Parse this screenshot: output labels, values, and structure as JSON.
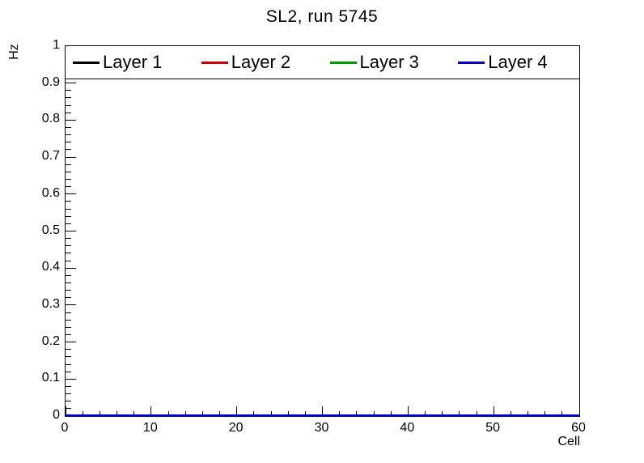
{
  "canvas": {
    "background": "#ffffff",
    "foreground": "#000000"
  },
  "chart_data": {
    "type": "line",
    "title": "SL2, run 5745",
    "xlabel": "Cell",
    "ylabel": "Hz",
    "xlim": [
      0,
      60
    ],
    "ylim": [
      0,
      1
    ],
    "grid": false,
    "x_ticks": {
      "major_values": [
        0,
        10,
        20,
        30,
        40,
        50,
        60
      ],
      "major_labels": [
        "0",
        "10",
        "20",
        "30",
        "40",
        "50",
        "60"
      ],
      "minor_step": 2
    },
    "y_ticks": {
      "major_values": [
        0,
        0.1,
        0.2,
        0.3,
        0.4,
        0.5,
        0.6,
        0.7,
        0.8,
        0.9,
        1
      ],
      "major_labels": [
        "0",
        "0.1",
        "0.2",
        "0.3",
        "0.4",
        "0.5",
        "0.6",
        "0.7",
        "0.8",
        "0.9",
        "1"
      ],
      "minor_step": 0.02
    },
    "legend": {
      "position": "top-full-width",
      "entries": [
        {
          "label": "Layer 1",
          "color": "#000000"
        },
        {
          "label": "Layer 2",
          "color": "#cc0000"
        },
        {
          "label": "Layer 3",
          "color": "#009900"
        },
        {
          "label": "Layer 4",
          "color": "#0000cc"
        }
      ]
    },
    "series": [
      {
        "name": "Layer 1",
        "color": "#000000",
        "x": [
          0,
          60
        ],
        "y": [
          0,
          0
        ]
      },
      {
        "name": "Layer 2",
        "color": "#cc0000",
        "x": [
          0,
          60
        ],
        "y": [
          0,
          0
        ]
      },
      {
        "name": "Layer 3",
        "color": "#009900",
        "x": [
          0,
          60
        ],
        "y": [
          0,
          0
        ]
      },
      {
        "name": "Layer 4",
        "color": "#0000cc",
        "x": [
          0,
          60
        ],
        "y": [
          0,
          0
        ]
      }
    ]
  }
}
